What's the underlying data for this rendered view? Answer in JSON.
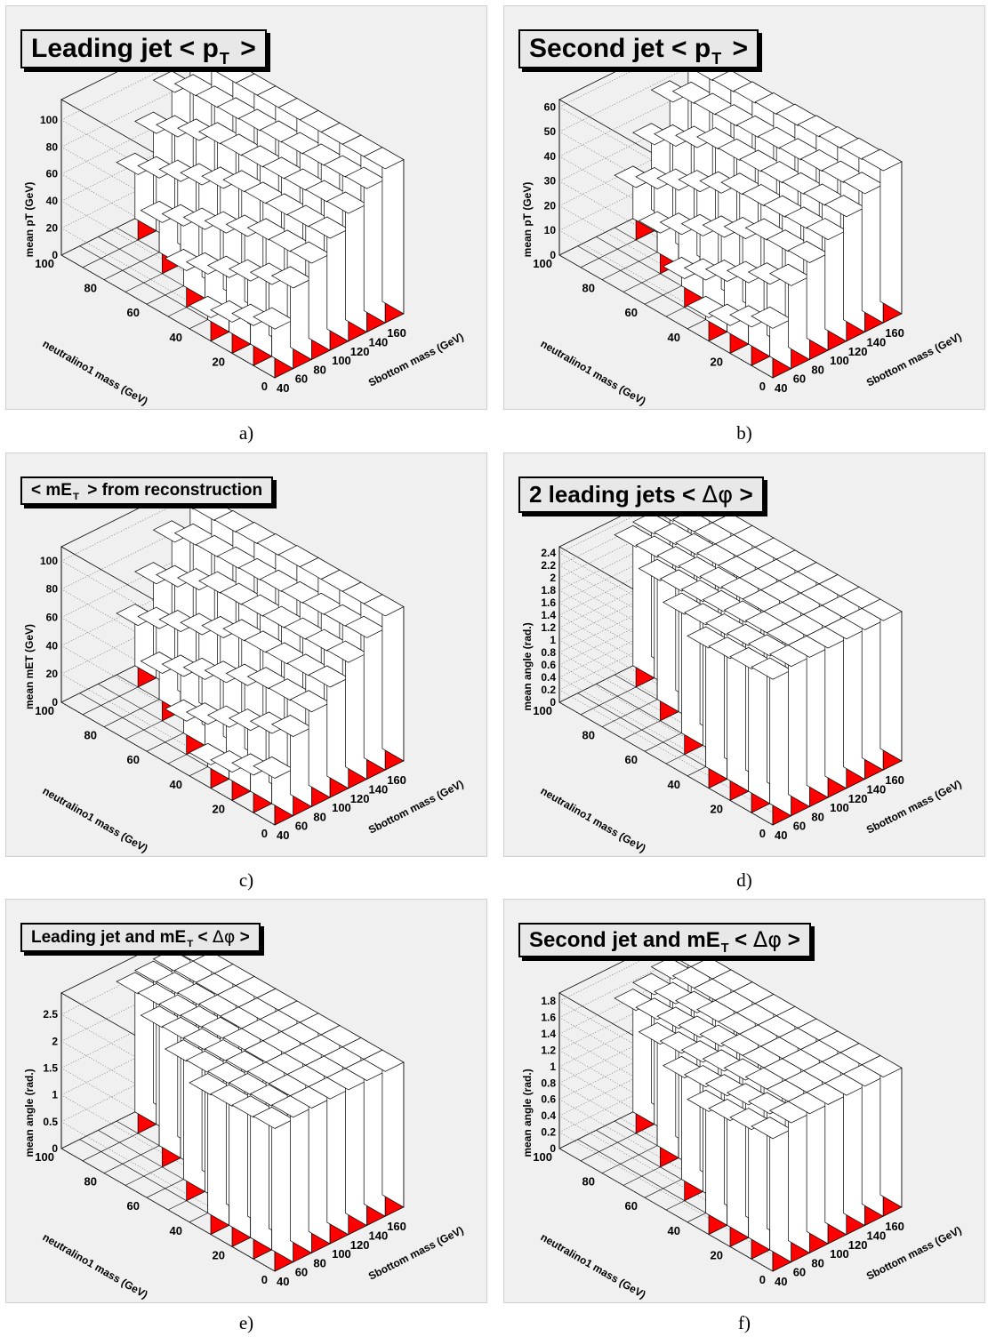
{
  "chart_data": [
    {
      "id": "a",
      "caption": "a)",
      "type": "bar3d",
      "title_main": "Leading jet < p",
      "title_sub": "T",
      "title_tail": " >",
      "title_sym": "",
      "xlabel": "Sbottom mass (GeV)",
      "ylabel": "neutralino1 mass (GeV)",
      "zlabel": "mean pT (GeV)",
      "x_ticks": [
        "40",
        "60",
        "80",
        "100",
        "120",
        "140",
        "160"
      ],
      "y_ticks": [
        "0",
        "20",
        "40",
        "60",
        "80",
        "100"
      ],
      "z_ticks": [
        "0",
        "20",
        "40",
        "60",
        "80",
        "100"
      ],
      "zlim": [
        0,
        115
      ],
      "z_base": 48,
      "z_slope_x": 0.58,
      "z_slope_y": -0.05,
      "diag_drop": 6,
      "colors": {
        "top": "#ffffff",
        "front": "#ff0000",
        "side": "#ffffff",
        "edge": "#000000"
      }
    },
    {
      "id": "b",
      "caption": "b)",
      "type": "bar3d",
      "title_main": "Second jet < p",
      "title_sub": "T",
      "title_tail": " >",
      "title_sym": "",
      "xlabel": "Sbottom mass (GeV)",
      "ylabel": "neutralino1 mass (GeV)",
      "zlabel": "mean pT (GeV)",
      "x_ticks": [
        "40",
        "60",
        "80",
        "100",
        "120",
        "140",
        "160"
      ],
      "y_ticks": [
        "0",
        "20",
        "40",
        "60",
        "80",
        "100"
      ],
      "z_ticks": [
        "0",
        "10",
        "20",
        "30",
        "40",
        "50",
        "60"
      ],
      "zlim": [
        0,
        63
      ],
      "z_base": 28,
      "z_slope_x": 0.28,
      "z_slope_y": -0.04,
      "diag_drop": 4,
      "colors": {
        "top": "#ffffff",
        "front": "#ff0000",
        "side": "#ffffff",
        "edge": "#000000"
      }
    },
    {
      "id": "c",
      "caption": "c)",
      "type": "bar3d",
      "title_main": "< mE",
      "title_sub": "T",
      "title_tail": " > from reconstruction",
      "title_sym": "",
      "xlabel": "Sbottom mass (GeV)",
      "ylabel": "neutralino1 mass (GeV)",
      "zlabel": "mean mET (GeV)",
      "x_ticks": [
        "40",
        "60",
        "80",
        "100",
        "120",
        "140",
        "160"
      ],
      "y_ticks": [
        "0",
        "20",
        "40",
        "60",
        "80",
        "100"
      ],
      "z_ticks": [
        "0",
        "20",
        "40",
        "60",
        "80",
        "100"
      ],
      "zlim": [
        0,
        110
      ],
      "z_base": 45,
      "z_slope_x": 0.55,
      "z_slope_y": -0.05,
      "diag_drop": 6,
      "colors": {
        "top": "#ffffff",
        "front": "#ff0000",
        "side": "#ffffff",
        "edge": "#000000"
      }
    },
    {
      "id": "d",
      "caption": "d)",
      "type": "bar3d",
      "title_main": "2 leading jets < ",
      "title_sub": "",
      "title_tail": " >",
      "title_sym": "Δφ",
      "xlabel": "Sbottom mass (GeV)",
      "ylabel": "neutralino1 mass (GeV)",
      "zlabel": "mean angle (rad.)",
      "x_ticks": [
        "40",
        "60",
        "80",
        "100",
        "120",
        "140",
        "160"
      ],
      "y_ticks": [
        "0",
        "20",
        "40",
        "60",
        "80",
        "100"
      ],
      "z_ticks": [
        "0",
        "0.2",
        "0.4",
        "0.6",
        "0.8",
        "1",
        "1.2",
        "1.4",
        "1.6",
        "1.8",
        "2",
        "2.2",
        "2.4"
      ],
      "zlim": [
        0,
        2.5
      ],
      "z_base": 2.4,
      "z_slope_x": 0.0,
      "z_slope_y": 0.0,
      "diag_drop": 0.03,
      "colors": {
        "top": "#ffffff",
        "front": "#ff0000",
        "side": "#ffffff",
        "edge": "#000000"
      }
    },
    {
      "id": "e",
      "caption": "e)",
      "type": "bar3d",
      "title_main": "Leading jet and mE",
      "title_sub": "T",
      "title_tail": " < ",
      "title_sym": "Δφ",
      "title_end": " >",
      "xlabel": "Sbottom mass (GeV)",
      "ylabel": "neutralino1 mass (GeV)",
      "zlabel": "mean angle (rad.)",
      "x_ticks": [
        "40",
        "60",
        "80",
        "100",
        "120",
        "140",
        "160"
      ],
      "y_ticks": [
        "0",
        "20",
        "40",
        "60",
        "80",
        "100"
      ],
      "z_ticks": [
        "0",
        "0.5",
        "1",
        "1.5",
        "2",
        "2.5"
      ],
      "zlim": [
        0,
        2.9
      ],
      "z_base": 2.7,
      "z_slope_x": 0.0,
      "z_slope_y": 0.0,
      "diag_drop": 0.02,
      "colors": {
        "top": "#ffffff",
        "front": "#ff0000",
        "side": "#ffffff",
        "edge": "#000000"
      }
    },
    {
      "id": "f",
      "caption": "f)",
      "type": "bar3d",
      "title_main": "Second jet and mE",
      "title_sub": "T",
      "title_tail": " < ",
      "title_sym": "Δφ",
      "title_end": " >",
      "xlabel": "Sbottom mass (GeV)",
      "ylabel": "neutralino1 mass (GeV)",
      "zlabel": "mean angle (rad.)",
      "x_ticks": [
        "40",
        "60",
        "80",
        "100",
        "120",
        "140",
        "160"
      ],
      "y_ticks": [
        "0",
        "20",
        "40",
        "60",
        "80",
        "100"
      ],
      "z_ticks": [
        "0",
        "0.2",
        "0.4",
        "0.6",
        "0.8",
        "1",
        "1.2",
        "1.4",
        "1.6",
        "1.8"
      ],
      "zlim": [
        0,
        1.9
      ],
      "z_base": 1.7,
      "z_slope_x": 0.0,
      "z_slope_y": 0.0,
      "diag_drop": 0.04,
      "colors": {
        "top": "#ffffff",
        "front": "#ff0000",
        "side": "#ffffff",
        "edge": "#000000"
      }
    }
  ]
}
